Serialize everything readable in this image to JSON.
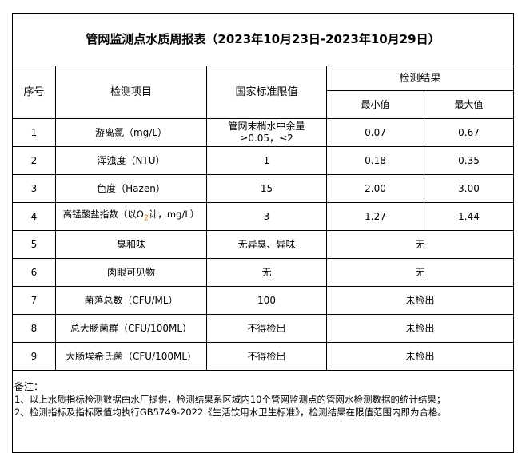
{
  "title": "管网监测点水质周报表（2023年10月23日-2023年10月29日）",
  "headers": {
    "no": "序号",
    "item": "检测项目",
    "standard": "国家标准限值",
    "results": "检测结果",
    "min": "最小值",
    "max": "最大值"
  },
  "rows": [
    {
      "no": "1",
      "item": "游离氯（mg/L）",
      "standard": "管网末梢水中余量≥0.05，≤2",
      "min": "0.07",
      "max": "0.67"
    },
    {
      "no": "2",
      "item": "浑浊度（NTU）",
      "standard": "1",
      "min": "0.18",
      "max": "0.35"
    },
    {
      "no": "3",
      "item": "色度（Hazen）",
      "standard": "15",
      "min": "2.00",
      "max": "3.00"
    },
    {
      "no": "4",
      "item_a": "高锰酸盐指数（以O",
      "item_sub": "2",
      "item_b": "计，mg/L）",
      "standard": "3",
      "min": "1.27",
      "max": "1.44"
    },
    {
      "no": "5",
      "item": "臭和味",
      "standard": "无异臭、异味",
      "result": "无"
    },
    {
      "no": "6",
      "item": "肉眼可见物",
      "standard": "无",
      "result": "无"
    },
    {
      "no": "7",
      "item": "菌落总数（CFU/ML）",
      "standard": "100",
      "result": "未检出"
    },
    {
      "no": "8",
      "item": "总大肠菌群（CFU/100ML）",
      "standard": "不得检出",
      "result": "未检出"
    },
    {
      "no": "9",
      "item": "大肠埃希氏菌（CFU/100ML）",
      "standard": "不得检出",
      "result": "未检出"
    }
  ],
  "notes": {
    "label": "备注：",
    "line1": "1、以上水质指标检测数据由水厂提供，检测结果系区域内10个管网监测点的管网水检测数据的统计结果；",
    "line2": "2、检测指标及指标限值均执行GB5749-2022《生活饮用水卫生标准》，检测结果在限值范围内即为合格。"
  }
}
